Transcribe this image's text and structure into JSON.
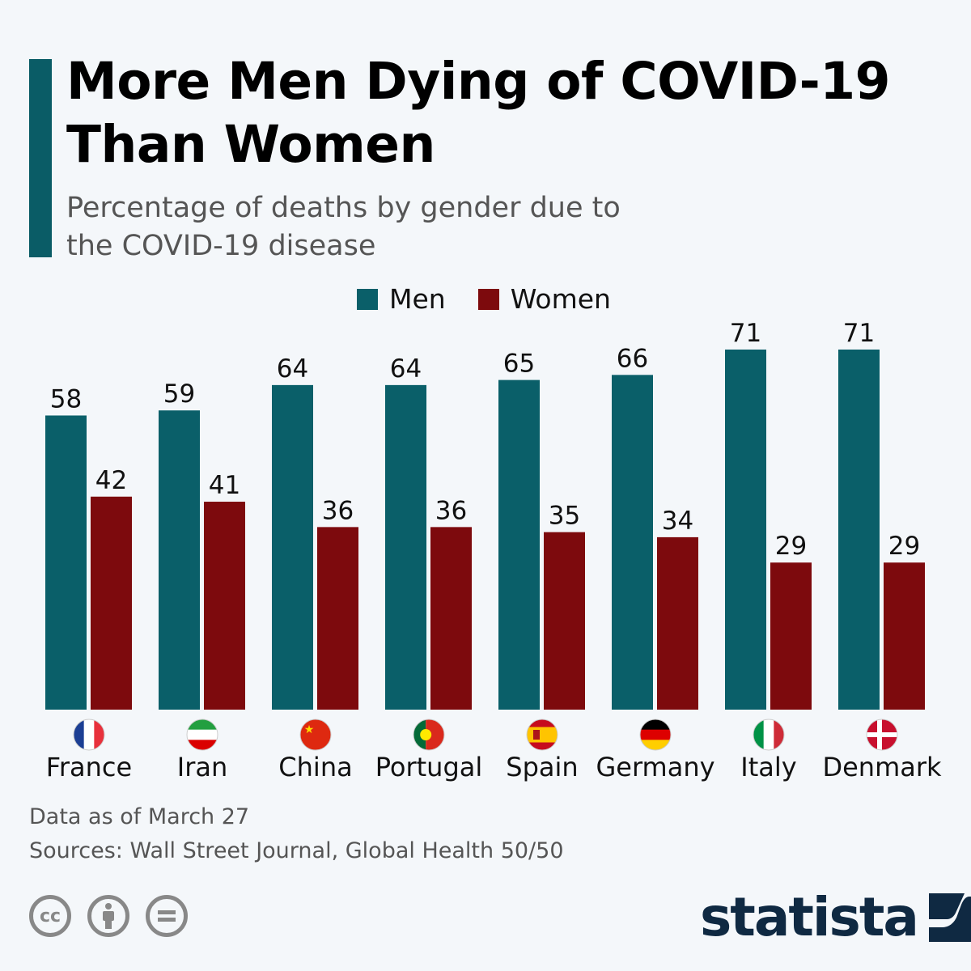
{
  "header": {
    "title": "More Men Dying of COVID-19 Than Women",
    "subtitle": "Percentage of deaths by gender due to the COVID-19 disease"
  },
  "colors": {
    "men": "#0a5f69",
    "women": "#7d0a0d",
    "accent": "#0a5c66",
    "brand": "#0f2942",
    "background": "#f4f7fa"
  },
  "chart_data": {
    "type": "bar",
    "title": "More Men Dying of COVID-19 Than Women",
    "subtitle": "Percentage of deaths by gender due to the COVID-19 disease",
    "categories": [
      "France",
      "Iran",
      "China",
      "Portugal",
      "Spain",
      "Germany",
      "Italy",
      "Denmark"
    ],
    "flag_icons": [
      "france-flag-icon",
      "iran-flag-icon",
      "china-flag-icon",
      "portugal-flag-icon",
      "spain-flag-icon",
      "germany-flag-icon",
      "italy-flag-icon",
      "denmark-flag-icon"
    ],
    "series": [
      {
        "name": "Men",
        "values": [
          58,
          59,
          64,
          64,
          65,
          66,
          71,
          71
        ]
      },
      {
        "name": "Women",
        "values": [
          42,
          41,
          36,
          36,
          35,
          34,
          29,
          29
        ]
      }
    ],
    "ylim": [
      0,
      71
    ],
    "grid": false,
    "legend": "top-center",
    "data_labels": true
  },
  "legend": {
    "men": "Men",
    "women": "Women"
  },
  "footer": {
    "note": "Data as of March 27",
    "sources": "Sources: Wall Street Journal, Global Health 50/50",
    "license_icons": [
      "cc-icon",
      "attribution-icon",
      "no-derivatives-icon"
    ],
    "cc_text": "cc",
    "brand": "statista"
  }
}
